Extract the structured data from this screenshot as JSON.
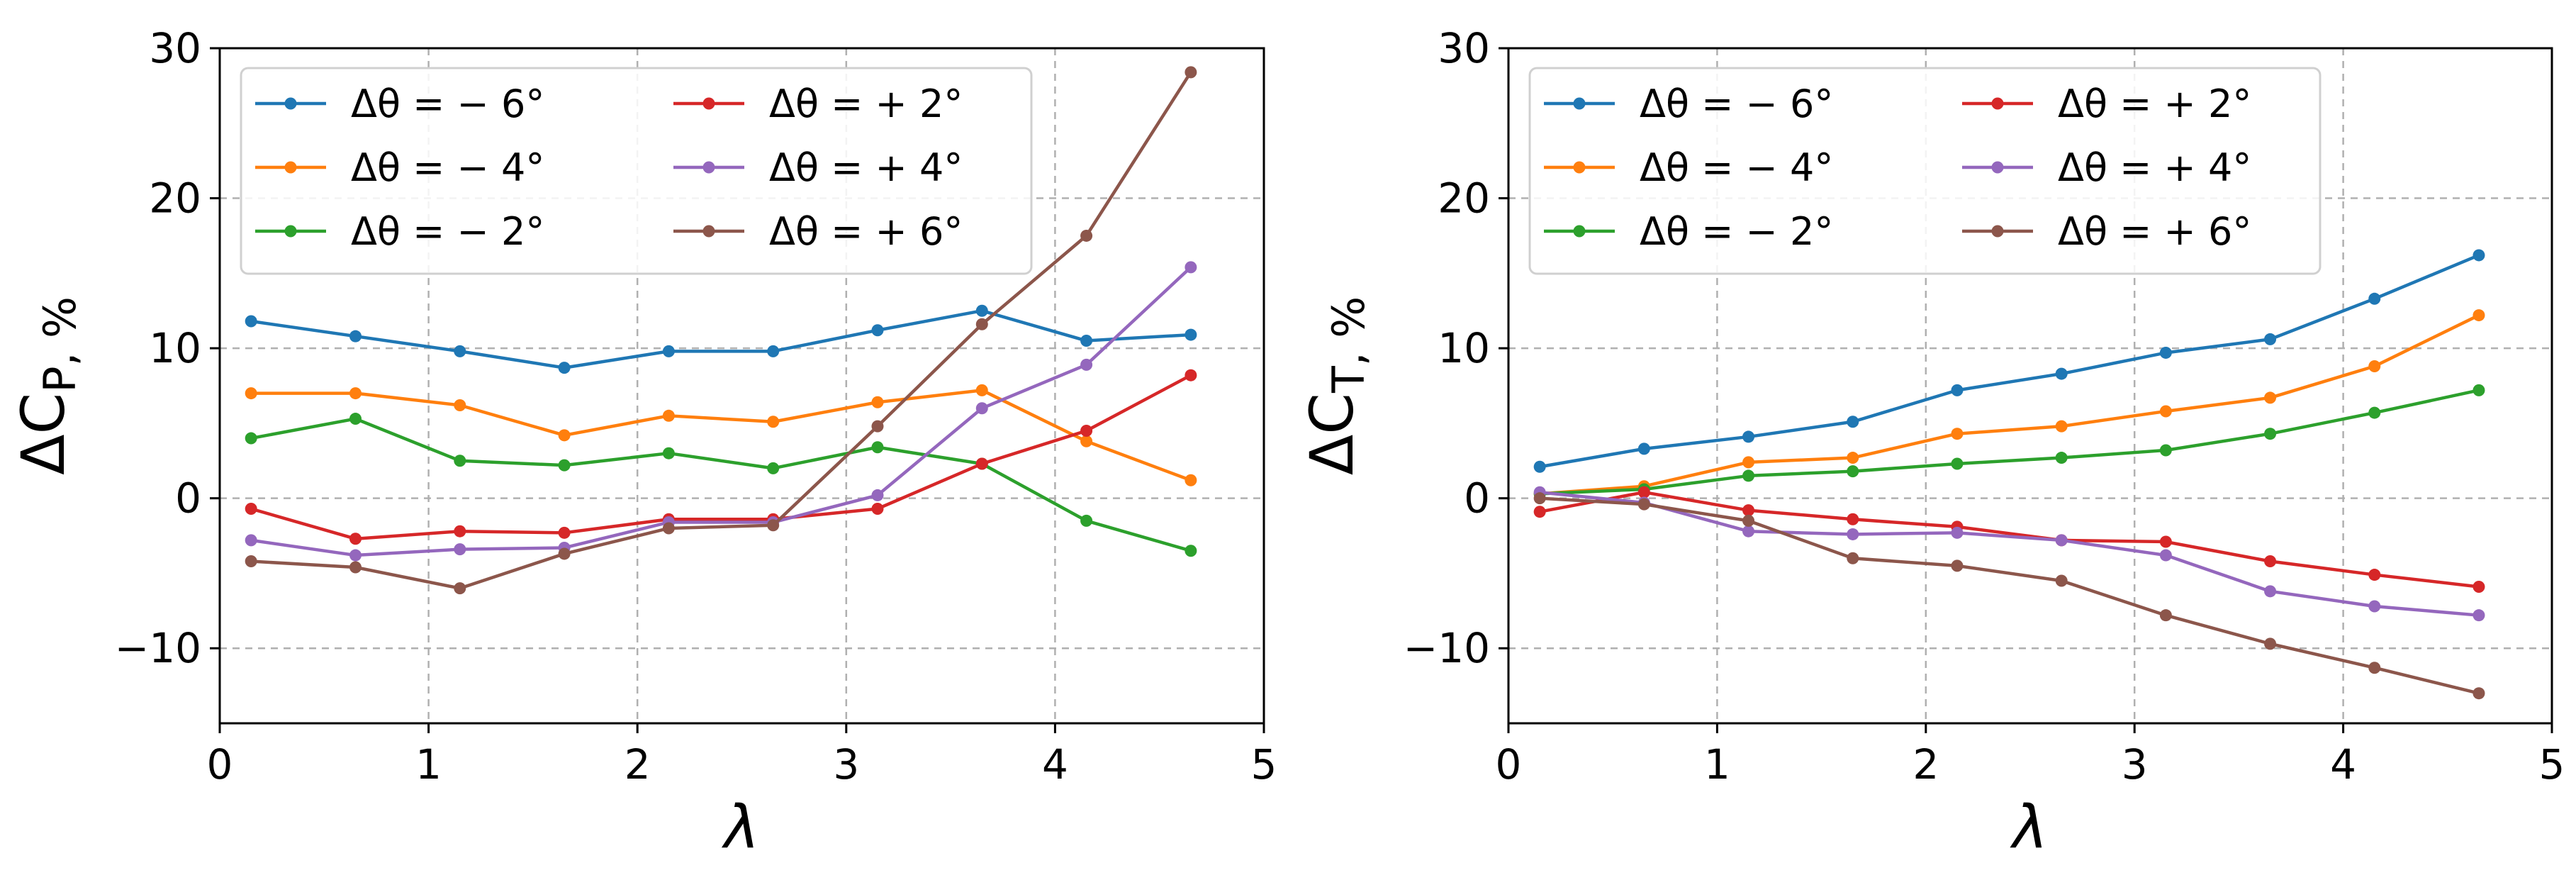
{
  "colors": {
    "-6": "#1f77b4",
    "-4": "#ff7f0e",
    "-2": "#2ca02c",
    "+2": "#d62728",
    "+4": "#9467bd",
    "+6": "#8c564b"
  },
  "chart_data": [
    {
      "type": "line",
      "title": "",
      "xlabel": "λ",
      "ylabel": "ΔC_P, %",
      "ylabel_main": "ΔC",
      "ylabel_sub": "P, %",
      "xlim": [
        0,
        5
      ],
      "ylim": [
        -15,
        30
      ],
      "xticks": [
        0,
        1,
        2,
        3,
        4,
        5
      ],
      "xtick_labels": [
        "0",
        "1",
        "2",
        "3",
        "4",
        "5"
      ],
      "yticks": [
        -10,
        0,
        10,
        20,
        30
      ],
      "ytick_labels": [
        "−10",
        "0",
        "10",
        "20",
        "30"
      ],
      "grid": true,
      "legend_position": "upper-left",
      "x": [
        0.15,
        0.65,
        1.15,
        1.65,
        2.15,
        2.65,
        3.15,
        3.65,
        4.15,
        4.65
      ],
      "series": [
        {
          "key": "-6",
          "name": "Δθ = − 6°",
          "values": [
            11.8,
            10.8,
            9.8,
            8.7,
            9.8,
            9.8,
            11.2,
            12.5,
            10.5,
            10.9
          ]
        },
        {
          "key": "-4",
          "name": "Δθ = − 4°",
          "values": [
            7.0,
            7.0,
            6.2,
            4.2,
            5.5,
            5.1,
            6.4,
            7.2,
            3.8,
            1.2
          ]
        },
        {
          "key": "-2",
          "name": "Δθ = − 2°",
          "values": [
            4.0,
            5.3,
            2.5,
            2.2,
            3.0,
            2.0,
            3.4,
            2.3,
            -1.5,
            -3.5
          ]
        },
        {
          "key": "+2",
          "name": "Δθ = + 2°",
          "values": [
            -0.7,
            -2.7,
            -2.2,
            -2.3,
            -1.4,
            -1.4,
            -0.7,
            2.3,
            4.5,
            8.2
          ]
        },
        {
          "key": "+4",
          "name": "Δθ = + 4°",
          "values": [
            -2.8,
            -3.8,
            -3.4,
            -3.3,
            -1.6,
            -1.6,
            0.2,
            6.0,
            8.9,
            15.4
          ]
        },
        {
          "key": "+6",
          "name": "Δθ = + 6°",
          "values": [
            -4.2,
            -4.6,
            -6.0,
            -3.7,
            -2.0,
            -1.8,
            4.8,
            11.6,
            17.5,
            28.4
          ]
        }
      ]
    },
    {
      "type": "line",
      "title": "",
      "xlabel": "λ",
      "ylabel": "ΔC_T, %",
      "ylabel_main": "ΔC",
      "ylabel_sub": "T, %",
      "xlim": [
        0,
        5
      ],
      "ylim": [
        -15,
        30
      ],
      "xticks": [
        0,
        1,
        2,
        3,
        4,
        5
      ],
      "xtick_labels": [
        "0",
        "1",
        "2",
        "3",
        "4",
        "5"
      ],
      "yticks": [
        -10,
        0,
        10,
        20,
        30
      ],
      "ytick_labels": [
        "−10",
        "0",
        "10",
        "20",
        "30"
      ],
      "grid": true,
      "legend_position": "upper-left",
      "x": [
        0.15,
        0.65,
        1.15,
        1.65,
        2.15,
        2.65,
        3.15,
        3.65,
        4.15,
        4.65
      ],
      "series": [
        {
          "key": "-6",
          "name": "Δθ = − 6°",
          "values": [
            2.1,
            3.3,
            4.1,
            5.1,
            7.2,
            8.3,
            9.7,
            10.6,
            13.3,
            16.2
          ]
        },
        {
          "key": "-4",
          "name": "Δθ = − 4°",
          "values": [
            0.3,
            0.8,
            2.4,
            2.7,
            4.3,
            4.8,
            5.8,
            6.7,
            8.8,
            12.2
          ]
        },
        {
          "key": "-2",
          "name": "Δθ = − 2°",
          "values": [
            0.3,
            0.6,
            1.5,
            1.8,
            2.3,
            2.7,
            3.2,
            4.3,
            5.7,
            7.2
          ]
        },
        {
          "key": "+2",
          "name": "Δθ = + 2°",
          "values": [
            -0.9,
            0.4,
            -0.8,
            -1.4,
            -1.9,
            -2.8,
            -2.9,
            -4.2,
            -5.1,
            -5.9
          ]
        },
        {
          "key": "+4",
          "name": "Δθ = + 4°",
          "values": [
            0.4,
            -0.3,
            -2.2,
            -2.4,
            -2.3,
            -2.8,
            -3.8,
            -6.2,
            -7.2,
            -7.8
          ]
        },
        {
          "key": "+6",
          "name": "Δθ = + 6°",
          "values": [
            0.0,
            -0.4,
            -1.5,
            -4.0,
            -4.5,
            -5.5,
            -7.8,
            -9.7,
            -11.3,
            -13.0
          ]
        }
      ]
    }
  ]
}
